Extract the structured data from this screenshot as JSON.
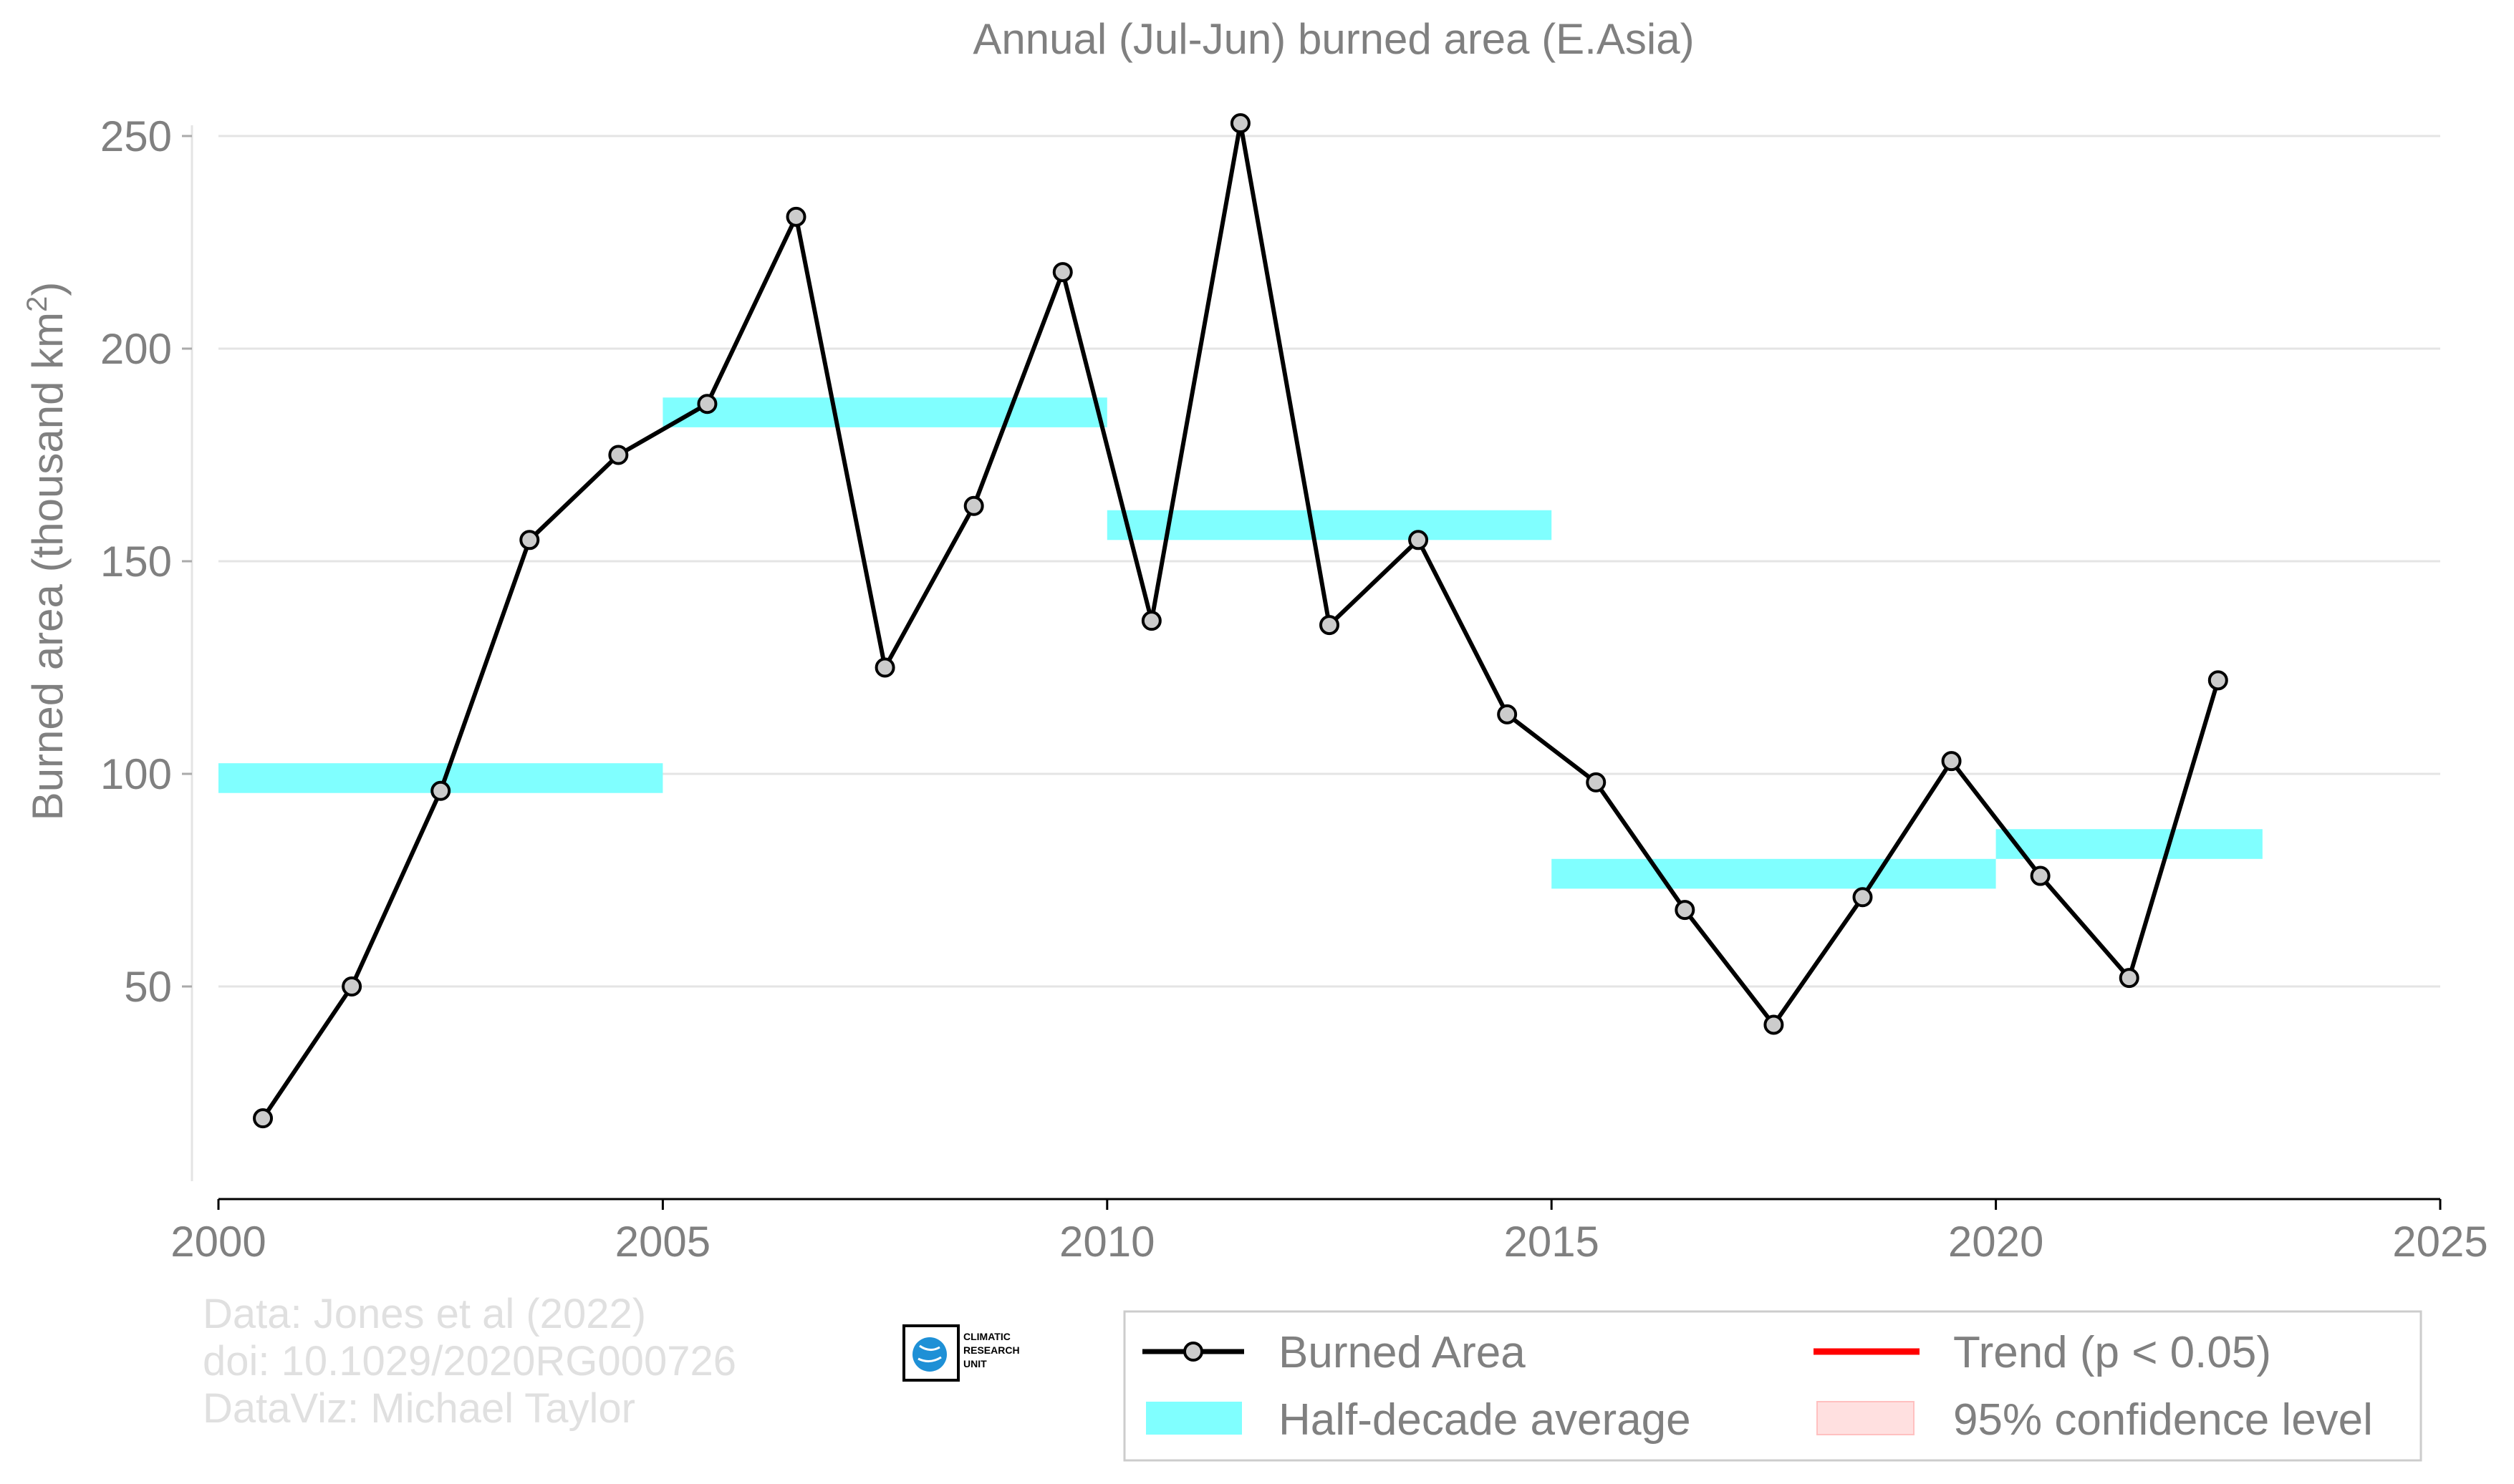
{
  "chart_data": {
    "type": "line",
    "title": "Annual (Jul-Jun) burned area (E.Asia)",
    "ylabel": "Burned area (thousand km",
    "ylabel_sup": "2",
    "ylabel_end": ")",
    "xlabel": "",
    "xlim": [
      2000,
      2025
    ],
    "ylim": [
      0,
      250
    ],
    "xticks": [
      2000,
      2005,
      2010,
      2015,
      2020,
      2025
    ],
    "yticks": [
      50,
      100,
      150,
      200,
      250
    ],
    "grid": "horizontal",
    "series": [
      {
        "name": "Burned Area",
        "color": "#000000",
        "marker_fill": "#cccccc",
        "x": [
          2000.5,
          2001.5,
          2002.5,
          2003.5,
          2004.5,
          2005.5,
          2006.5,
          2007.5,
          2008.5,
          2009.5,
          2010.5,
          2011.5,
          2012.5,
          2013.5,
          2014.5,
          2015.5,
          2016.5,
          2017.5,
          2018.5,
          2019.5,
          2020.5,
          2021.5,
          2022.5
        ],
        "values": [
          19,
          50,
          96,
          155,
          175,
          187,
          231,
          125,
          163,
          218,
          136,
          253,
          135,
          155,
          114,
          98,
          68,
          41,
          71,
          103,
          76,
          52,
          122
        ]
      }
    ],
    "half_decade_average": {
      "name": "Half-decade average",
      "color": "#80ffff",
      "segments": [
        {
          "x0": 2000,
          "x1": 2005,
          "y_low": 95.5,
          "y_high": 102.5
        },
        {
          "x0": 2005,
          "x1": 2010,
          "y_low": 181.5,
          "y_high": 188.5
        },
        {
          "x0": 2010,
          "x1": 2015,
          "y_low": 155,
          "y_high": 162
        },
        {
          "x0": 2015,
          "x1": 2020,
          "y_low": 73,
          "y_high": 80
        },
        {
          "x0": 2020,
          "x1": 2023,
          "y_low": 80,
          "y_high": 87
        }
      ]
    },
    "legend": {
      "placement": "bottom-right",
      "items": [
        {
          "label": "Burned Area",
          "kind": "line-marker",
          "color": "#000000"
        },
        {
          "label": "Trend (p < 0.05)",
          "kind": "line",
          "color": "#ff0000"
        },
        {
          "label": "Half-decade average",
          "kind": "band",
          "color": "#80ffff"
        },
        {
          "label": "95% confidence level",
          "kind": "band",
          "color": "#ffe0e0"
        }
      ]
    },
    "credits": [
      "Data: Jones et al (2022)",
      "doi: 10.1029/2020RG000726",
      "DataViz: Michael Taylor"
    ],
    "logo": {
      "lines": [
        "CLIMATIC",
        "RESEARCH",
        "UNIT"
      ]
    }
  }
}
